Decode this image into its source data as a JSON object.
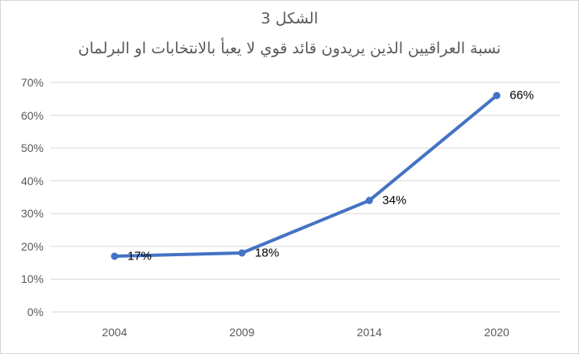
{
  "title": {
    "line1": "الشكل 3",
    "line2": "نسبة العراقيين الذين يريدون قائد قوي لا يعبأ بالانتخابات او البرلمان",
    "color": "#595959"
  },
  "chart_data": {
    "type": "line",
    "title": "الشكل 3",
    "subtitle": "نسبة العراقيين الذين يريدون قائد قوي لا يعبأ بالانتخابات او البرلمان",
    "categories": [
      "2004",
      "2009",
      "2014",
      "2020"
    ],
    "values": [
      17,
      18,
      34,
      66
    ],
    "data_labels": [
      "17%",
      "18%",
      "34%",
      "66%"
    ],
    "ytick_labels": [
      "0%",
      "10%",
      "20%",
      "30%",
      "40%",
      "50%",
      "60%",
      "70%"
    ],
    "ytick_step": 10,
    "ylim": [
      0,
      70
    ],
    "xlabel": "",
    "ylabel": "",
    "grid": "horizontal",
    "legend": "none",
    "marker": "circle",
    "colors": {
      "line": "#4472C4",
      "marker": "#4472C4",
      "gridline": "#D9D9D9",
      "axis_text": "#595959",
      "data_label_text": "#000000",
      "frame_border": "#D6D6D6",
      "background": "#FFFFFF"
    }
  }
}
